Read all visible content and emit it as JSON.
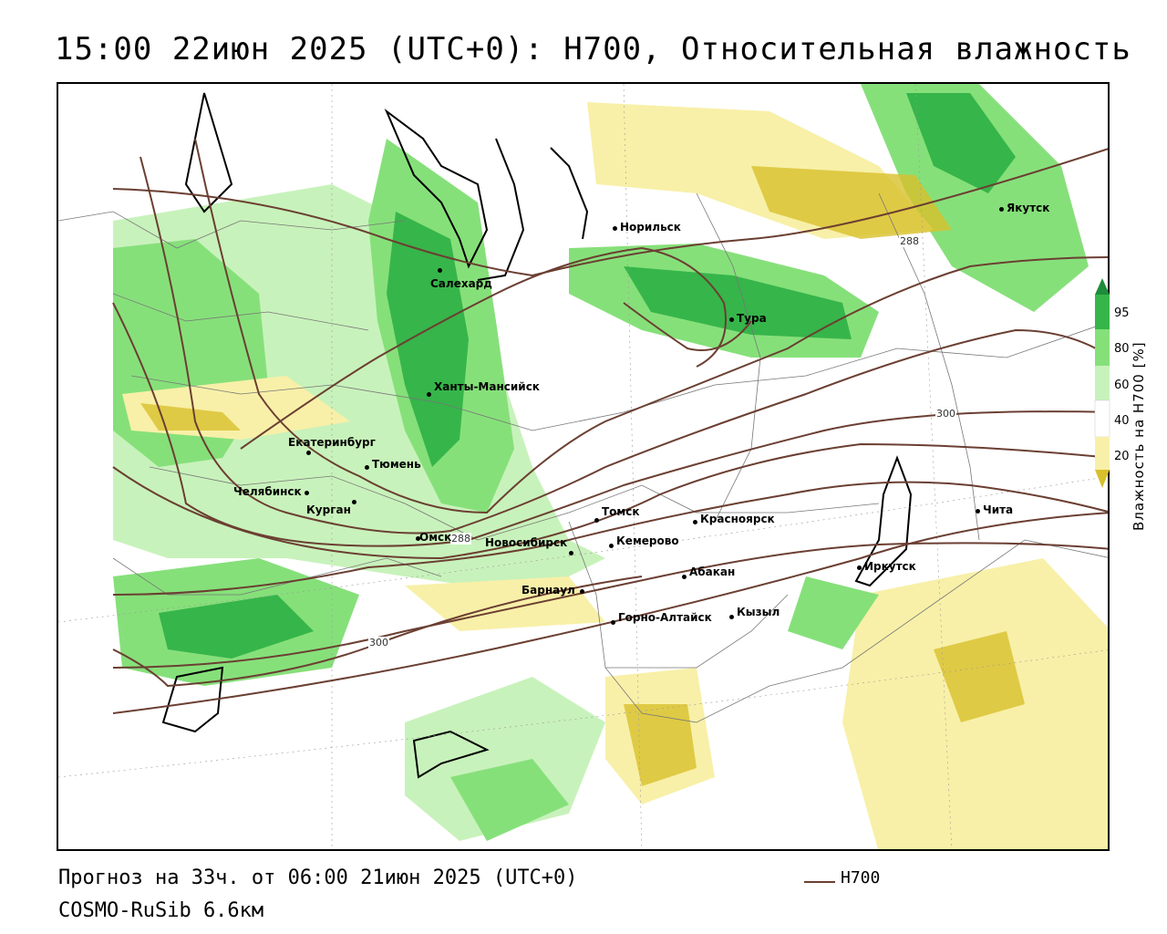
{
  "title": "15:00 22июн 2025 (UTC+0): H700, Относительная влажность",
  "footer": {
    "forecast": "Прогноз на 33ч. от 06:00 21июн 2025 (UTC+0)",
    "model": "COSMO-RuSib 6.6км"
  },
  "legend": {
    "line_label": "H700",
    "line_color": "#6b3f32"
  },
  "colorbar": {
    "title": "Влажность на H700 [%]",
    "ticks": [
      "95",
      "80",
      "60",
      "40",
      "20"
    ],
    "colors": {
      "very_wet": "#1e8c3a",
      "wet": "#36b54a",
      "moist": "#86e07a",
      "light": "#c8f2bb",
      "neutral": "#ffffff",
      "dry": "#f8f0a8",
      "very_dry": "#d8c02c"
    }
  },
  "cities": [
    {
      "name": "Норильск"
    },
    {
      "name": "Якутск"
    },
    {
      "name": "Салехард"
    },
    {
      "name": "Тура"
    },
    {
      "name": "Ханты-Мансийск"
    },
    {
      "name": "Екатеринбург"
    },
    {
      "name": "Тюмень"
    },
    {
      "name": "Челябинск"
    },
    {
      "name": "Курган"
    },
    {
      "name": "Омск"
    },
    {
      "name": "Томск"
    },
    {
      "name": "Красноярск"
    },
    {
      "name": "Новосибирск"
    },
    {
      "name": "Кемерово"
    },
    {
      "name": "Абакан"
    },
    {
      "name": "Барнаул"
    },
    {
      "name": "Горно-Алтайск"
    },
    {
      "name": "Кызыл"
    },
    {
      "name": "Иркутск"
    },
    {
      "name": "Чита"
    }
  ],
  "isolines": [
    "288",
    "300",
    "288",
    "300"
  ]
}
